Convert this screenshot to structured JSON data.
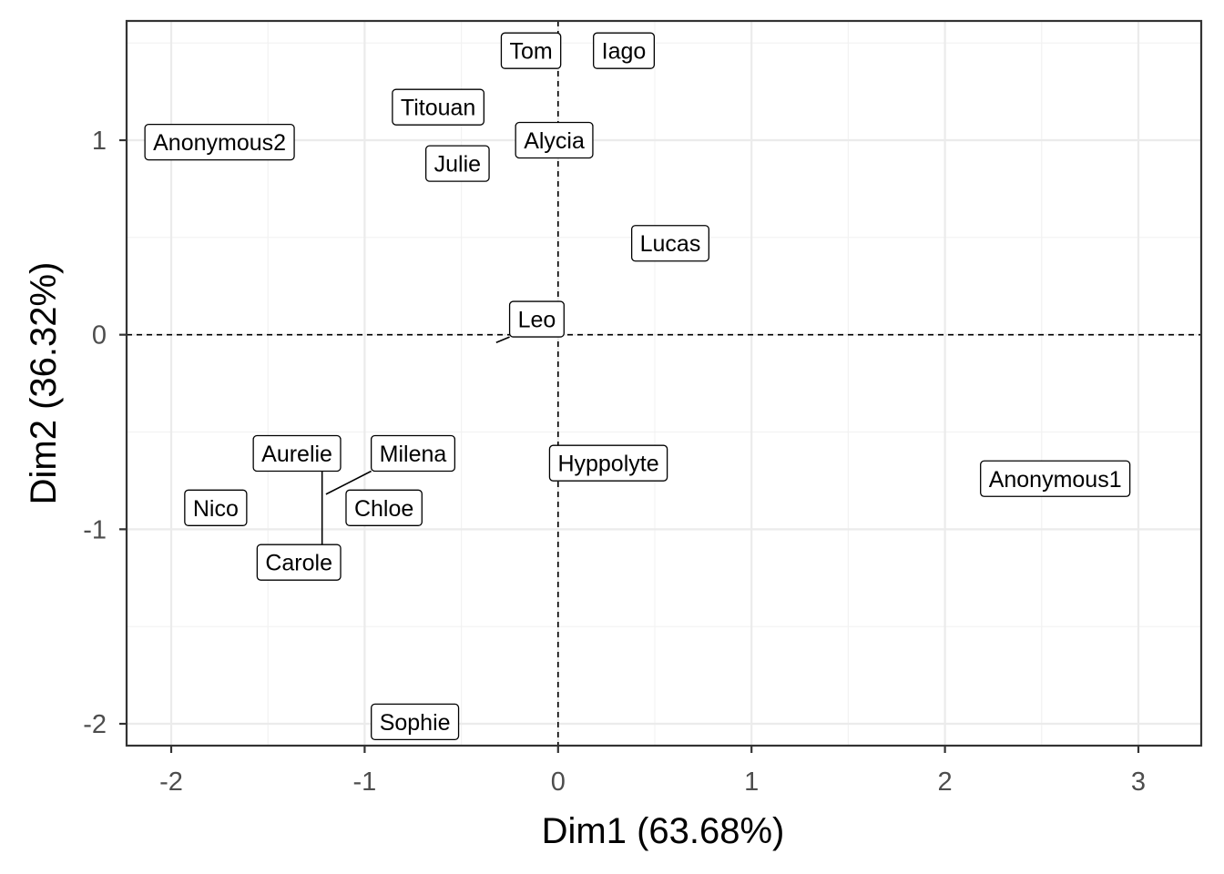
{
  "chart_data": {
    "type": "scatter",
    "xlabel": "Dim1 (63.68%)",
    "ylabel": "Dim2 (36.32%)",
    "xlim": [
      -2.23,
      3.32
    ],
    "ylim": [
      -2.1,
      1.6
    ],
    "xticks": [
      -2,
      -1,
      0,
      1,
      2,
      3
    ],
    "yticks": [
      -2,
      -1,
      0,
      1
    ],
    "xtick_labels": [
      "-2",
      "-1",
      "0",
      "1",
      "2",
      "3"
    ],
    "ytick_labels": [
      "-2",
      "-1",
      "0",
      "1"
    ],
    "grid": true,
    "reference_lines": {
      "x": 0,
      "y": 0,
      "style": "dashed"
    },
    "points": [
      {
        "name": "Tom",
        "x": -0.14,
        "y": 1.46,
        "lx": -0.14,
        "ly": 1.46
      },
      {
        "name": "Iago",
        "x": 0.34,
        "y": 1.46,
        "lx": 0.34,
        "ly": 1.46
      },
      {
        "name": "Titouan",
        "x": -0.62,
        "y": 1.17,
        "lx": -0.62,
        "ly": 1.17
      },
      {
        "name": "Anonymous2",
        "x": -1.75,
        "y": 0.99,
        "lx": -1.75,
        "ly": 0.99
      },
      {
        "name": "Alycia",
        "x": -0.02,
        "y": 1.0,
        "lx": -0.02,
        "ly": 1.0
      },
      {
        "name": "Julie",
        "x": -0.52,
        "y": 0.88,
        "lx": -0.52,
        "ly": 0.88
      },
      {
        "name": "Lucas",
        "x": 0.58,
        "y": 0.47,
        "lx": 0.58,
        "ly": 0.47
      },
      {
        "name": "Leo",
        "x": -0.32,
        "y": -0.04,
        "lx": -0.11,
        "ly": 0.08
      },
      {
        "name": "Hyppolyte",
        "x": 0.26,
        "y": -0.66,
        "lx": 0.26,
        "ly": -0.66
      },
      {
        "name": "Anonymous1",
        "x": 2.57,
        "y": -0.74,
        "lx": 2.57,
        "ly": -0.74
      },
      {
        "name": "Aurelie",
        "x": -1.22,
        "y": -0.83,
        "lx": -1.35,
        "ly": -0.61
      },
      {
        "name": "Milena",
        "x": -1.2,
        "y": -0.82,
        "lx": -0.75,
        "ly": -0.61
      },
      {
        "name": "Chloe",
        "x": -0.9,
        "y": -0.89,
        "lx": -0.9,
        "ly": -0.89
      },
      {
        "name": "Nico",
        "x": -1.77,
        "y": -0.89,
        "lx": -1.77,
        "ly": -0.89
      },
      {
        "name": "Carole",
        "x": -1.22,
        "y": -0.83,
        "lx": -1.34,
        "ly": -1.17
      },
      {
        "name": "Sophie",
        "x": -0.74,
        "y": -1.99,
        "lx": -0.74,
        "ly": -1.99
      }
    ]
  }
}
